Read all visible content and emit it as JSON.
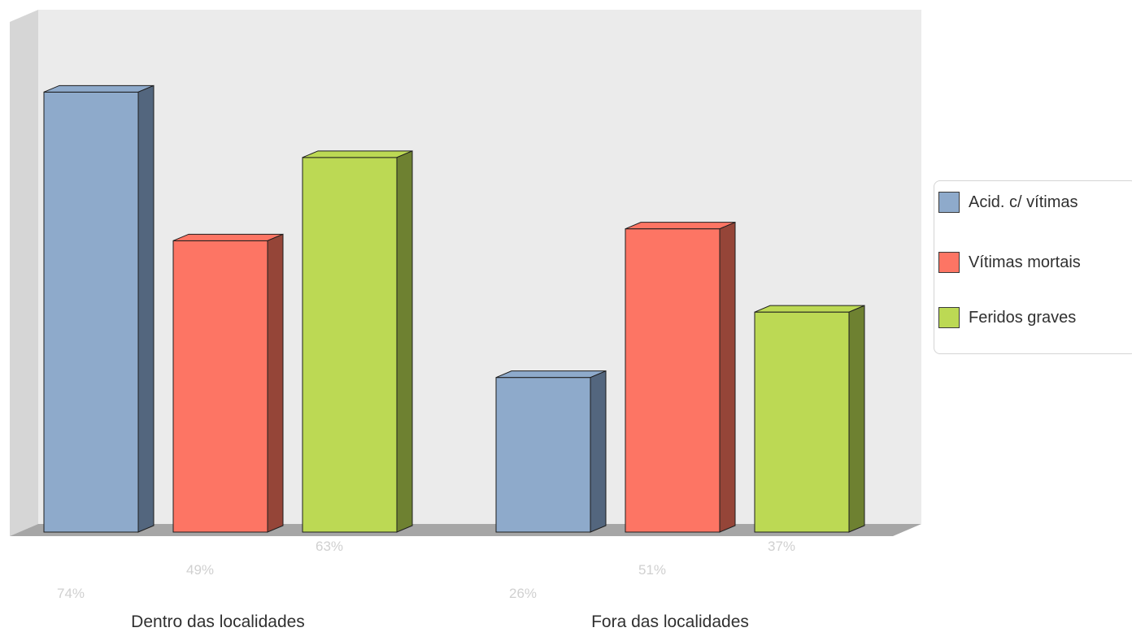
{
  "chart_data": {
    "type": "bar",
    "categories": [
      "Dentro das localidades",
      "Fora das localidades"
    ],
    "series": [
      {
        "name": "Acid. c/ vítimas",
        "values": [
          74,
          26
        ],
        "labels": [
          "74%",
          "26%"
        ],
        "color": "#8eaacb",
        "side_color": "#53667e"
      },
      {
        "name": "Vítimas mortais",
        "values": [
          49,
          51
        ],
        "labels": [
          "49%",
          "51%"
        ],
        "color": "#fd7564",
        "side_color": "#954538"
      },
      {
        "name": "Feridos graves",
        "values": [
          63,
          37
        ],
        "labels": [
          "63%",
          "37%"
        ],
        "color": "#bcd954",
        "side_color": "#6e8131"
      }
    ],
    "ylim": [
      0,
      80
    ],
    "grid": false,
    "legend_position": "right",
    "style": "3d-column"
  },
  "legend": {
    "items": [
      {
        "label": "Acid. c/ vítimas",
        "color": "#8eaacb"
      },
      {
        "label": "Vítimas mortais",
        "color": "#fd7564"
      },
      {
        "label": "Feridos graves",
        "color": "#bcd954"
      }
    ]
  },
  "colors": {
    "back_wall": "#ebebeb",
    "side_wall": "#d6d6d6",
    "floor": "#a6a6a6",
    "data_label": "#d0d0d0",
    "category_label": "#303030"
  }
}
